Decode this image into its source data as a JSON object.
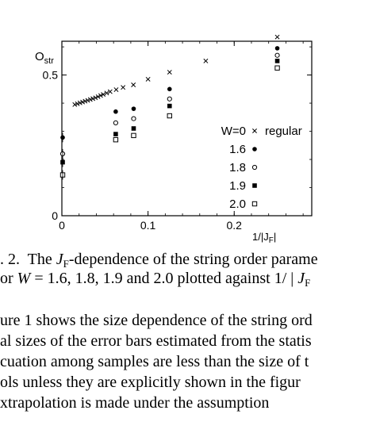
{
  "chart_data": {
    "type": "scatter",
    "ylabel": "O",
    "ylabel_sub": "str",
    "xlabel": "1/|J",
    "xlabel_sub": "F",
    "xlabel_tail": "|",
    "xlim": [
      0,
      0.29
    ],
    "ylim": [
      0,
      0.62
    ],
    "x_ticks": [
      {
        "value": 0,
        "label": "0"
      },
      {
        "value": 0.1,
        "label": "0.1"
      },
      {
        "value": 0.2,
        "label": "0.2"
      }
    ],
    "y_ticks": [
      {
        "value": 0,
        "label": "0"
      },
      {
        "value": 0.5,
        "label": "0.5"
      }
    ],
    "grid": false,
    "legend_position": "right",
    "legend_header": "W=0",
    "series": [
      {
        "name": "regular",
        "legend_label": "W=0",
        "marker": "cross",
        "x": [
          0.015,
          0.018,
          0.021,
          0.024,
          0.027,
          0.03,
          0.033,
          0.036,
          0.039,
          0.042,
          0.045,
          0.048,
          0.052,
          0.056,
          0.063,
          0.071,
          0.083,
          0.1,
          0.125,
          0.167,
          0.25
        ],
        "y": [
          0.395,
          0.398,
          0.401,
          0.404,
          0.407,
          0.41,
          0.413,
          0.416,
          0.419,
          0.423,
          0.427,
          0.431,
          0.436,
          0.441,
          0.448,
          0.456,
          0.465,
          0.485,
          0.51,
          0.55,
          0.635
        ]
      },
      {
        "name": "1.6",
        "legend_label": "1.6",
        "marker": "filled-circle",
        "x": [
          0,
          0.0625,
          0.0833,
          0.125,
          0.25
        ],
        "y": [
          0.278,
          0.37,
          0.38,
          0.45,
          0.595
        ]
      },
      {
        "name": "1.8",
        "legend_label": "1.8",
        "marker": "open-circle",
        "x": [
          0,
          0.0625,
          0.0833,
          0.125,
          0.25
        ],
        "y": [
          0.22,
          0.33,
          0.345,
          0.415,
          0.57
        ]
      },
      {
        "name": "1.9",
        "legend_label": "1.9",
        "marker": "filled-square",
        "x": [
          0,
          0.0625,
          0.0833,
          0.125,
          0.25
        ],
        "y": [
          0.19,
          0.29,
          0.31,
          0.39,
          0.55
        ]
      },
      {
        "name": "2.0",
        "legend_label": "2.0",
        "marker": "open-square",
        "x": [
          0,
          0.0625,
          0.0833,
          0.125,
          0.25
        ],
        "y": [
          0.145,
          0.27,
          0.285,
          0.355,
          0.525
        ]
      }
    ]
  },
  "caption": {
    "line1_a": ". 2.  The ",
    "line1_jf": "J",
    "line1_jf_sub": "F",
    "line1_b": "-dependence of the string order parame",
    "line2_a": "or ",
    "line2_w": "W",
    "line2_b": " = 1.6, 1.8, 1.9 and 2.0 plotted against 1/ | ",
    "line2_jf": "J",
    "line2_jf_sub": "F"
  },
  "body_text": [
    "ure 1 shows the size dependence of the string ord",
    "al sizes of the error bars estimated from the statis",
    "cuation among samples are less than the size of t",
    "ols unless they are explicitly shown in the figur",
    "xtrapolation is made under the assumption"
  ]
}
